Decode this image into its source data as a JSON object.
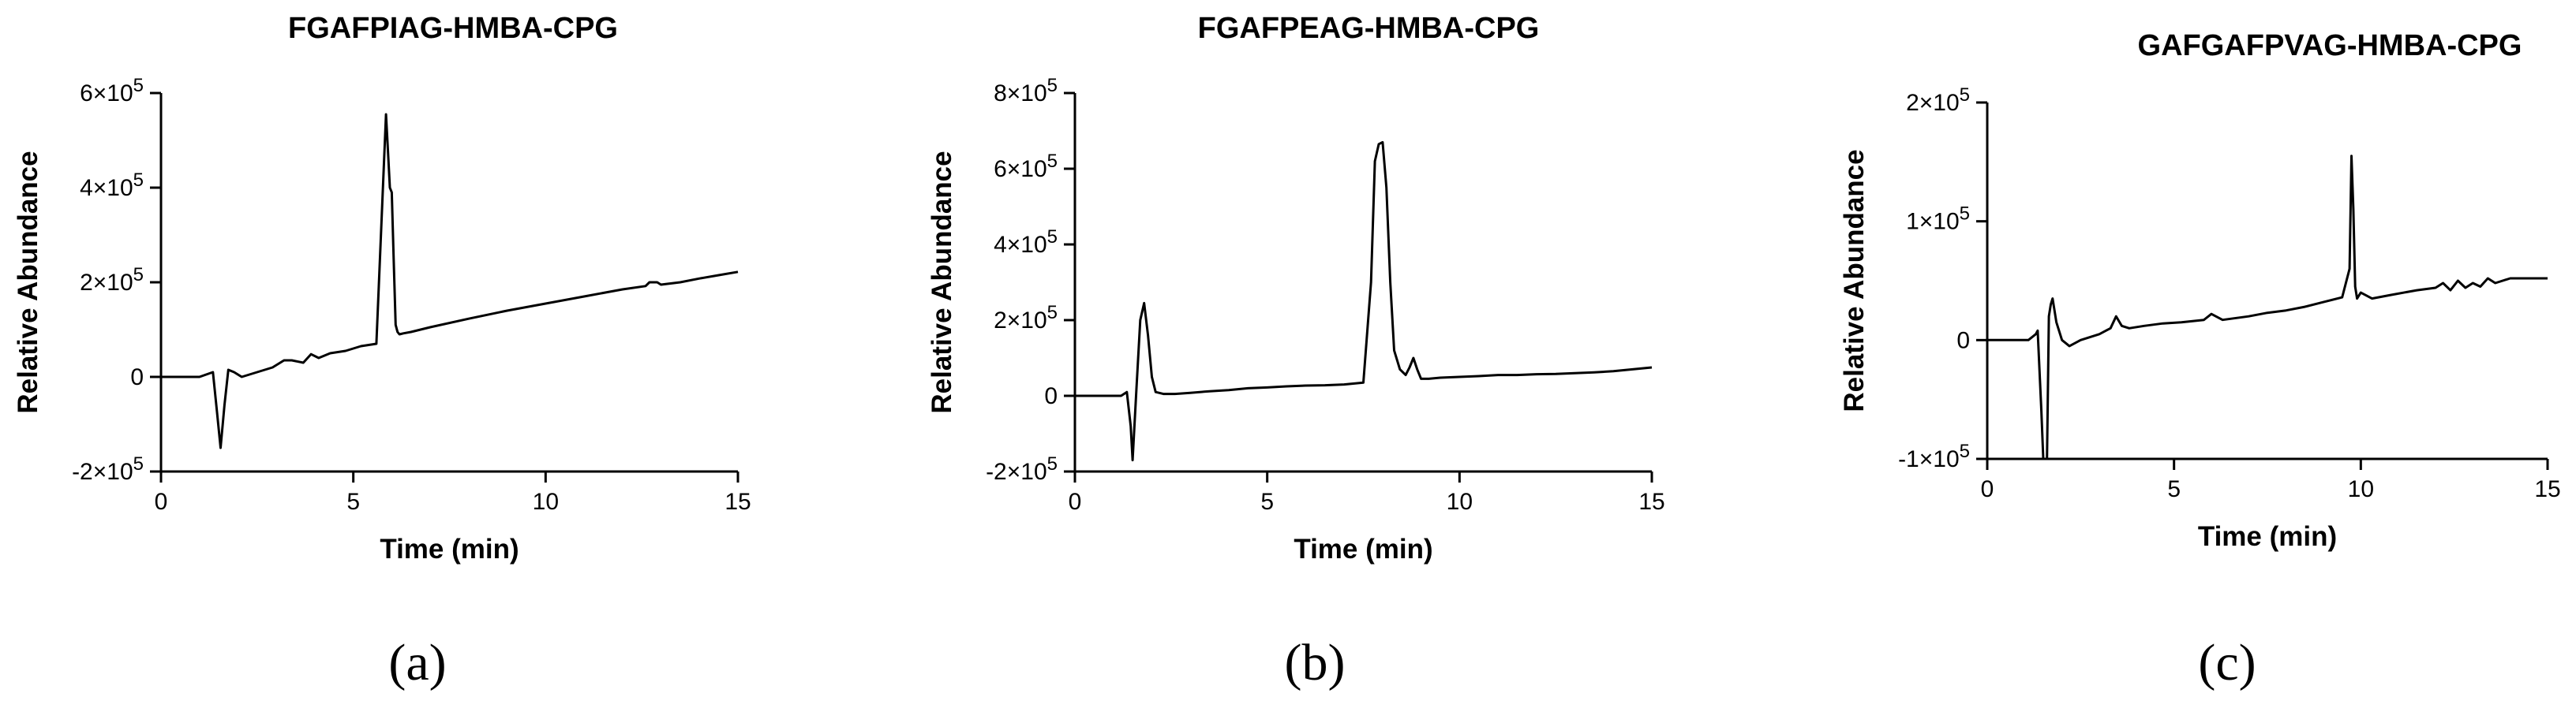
{
  "chart_data": [
    {
      "type": "line",
      "panel_label": "(a)",
      "title": "FGAFPIAG-HMBA-CPG",
      "xlabel": "Time (min)",
      "ylabel": "Relative Abundance",
      "xlim": [
        0,
        15
      ],
      "ylim": [
        -200000,
        600000
      ],
      "x_ticks": [
        0,
        5,
        10,
        15
      ],
      "x_tick_labels": [
        "0",
        "5",
        "10",
        "15"
      ],
      "y_ticks": [
        {
          "value": -200000,
          "mantissa": "-2×10",
          "exp": "5"
        },
        {
          "value": 0,
          "mantissa": "0",
          "exp": ""
        },
        {
          "value": 200000,
          "mantissa": "2×10",
          "exp": "5"
        },
        {
          "value": 400000,
          "mantissa": "4×10",
          "exp": "5"
        },
        {
          "value": 600000,
          "mantissa": "6×10",
          "exp": "5"
        }
      ],
      "series": [
        {
          "x": [
            0,
            1.0,
            1.35,
            1.45,
            1.55,
            1.65,
            1.75,
            1.9,
            2.1,
            2.5,
            2.9,
            3.2,
            3.4,
            3.7,
            3.9,
            4.1,
            4.4,
            4.8,
            5.2,
            5.6,
            5.85,
            5.9,
            5.95,
            6.0,
            6.05,
            6.1,
            6.15,
            6.2,
            6.3,
            6.5,
            7,
            8,
            9,
            10,
            11,
            12,
            12.6,
            12.7,
            12.9,
            13.0,
            13.5,
            14,
            14.5,
            15
          ],
          "y": [
            0,
            0,
            10000,
            -70000,
            -150000,
            -60000,
            15000,
            10000,
            0,
            10000,
            20000,
            35000,
            35000,
            30000,
            48000,
            40000,
            50000,
            55000,
            65000,
            70000,
            555000,
            480000,
            400000,
            390000,
            250000,
            110000,
            95000,
            90000,
            92000,
            95000,
            105000,
            123000,
            140000,
            155000,
            170000,
            185000,
            192000,
            200000,
            200000,
            195000,
            200000,
            208000,
            215000,
            222000
          ]
        }
      ]
    },
    {
      "type": "line",
      "panel_label": "(b)",
      "title": "FGAFPEAG-HMBA-CPG",
      "xlabel": "Time (min)",
      "ylabel": "Relative Abundance",
      "xlim": [
        0,
        15
      ],
      "ylim": [
        -200000,
        800000
      ],
      "x_ticks": [
        0,
        5,
        10,
        15
      ],
      "x_tick_labels": [
        "0",
        "5",
        "10",
        "15"
      ],
      "y_ticks": [
        {
          "value": -200000,
          "mantissa": "-2×10",
          "exp": "5"
        },
        {
          "value": 0,
          "mantissa": "0",
          "exp": ""
        },
        {
          "value": 200000,
          "mantissa": "2×10",
          "exp": "5"
        },
        {
          "value": 400000,
          "mantissa": "4×10",
          "exp": "5"
        },
        {
          "value": 600000,
          "mantissa": "6×10",
          "exp": "5"
        },
        {
          "value": 800000,
          "mantissa": "8×10",
          "exp": "5"
        }
      ],
      "series": [
        {
          "x": [
            0,
            1.2,
            1.35,
            1.45,
            1.5,
            1.6,
            1.7,
            1.8,
            1.9,
            2.0,
            2.1,
            2.3,
            2.6,
            3.0,
            3.5,
            4.0,
            4.5,
            5.0,
            5.5,
            6,
            6.5,
            7,
            7.5,
            7.7,
            7.8,
            7.9,
            8.0,
            8.1,
            8.2,
            8.3,
            8.45,
            8.6,
            8.7,
            8.8,
            8.9,
            9.0,
            9.2,
            9.5,
            10,
            10.5,
            11,
            11.5,
            12,
            12.5,
            13,
            13.5,
            14,
            14.5,
            15
          ],
          "y": [
            0,
            0,
            10000,
            -80000,
            -170000,
            20000,
            200000,
            245000,
            160000,
            50000,
            10000,
            5000,
            5000,
            8000,
            12000,
            15000,
            20000,
            22000,
            25000,
            27000,
            28000,
            30000,
            35000,
            300000,
            620000,
            665000,
            670000,
            550000,
            300000,
            120000,
            70000,
            55000,
            75000,
            100000,
            70000,
            45000,
            45000,
            48000,
            50000,
            52000,
            55000,
            55000,
            57000,
            58000,
            60000,
            62000,
            65000,
            70000,
            75000
          ]
        }
      ]
    },
    {
      "type": "line",
      "panel_label": "(c)",
      "title": "GAFGAFPVAG-HMBA-CPG",
      "xlabel": "Time (min)",
      "ylabel": "Relative  Abundance",
      "xlim": [
        0,
        15
      ],
      "ylim": [
        -100000,
        200000
      ],
      "x_ticks": [
        0,
        5,
        10,
        15
      ],
      "x_tick_labels": [
        "0",
        "5",
        "10",
        "15"
      ],
      "y_ticks": [
        {
          "value": -100000,
          "mantissa": "-1×10",
          "exp": "5"
        },
        {
          "value": 0,
          "mantissa": "0",
          "exp": ""
        },
        {
          "value": 100000,
          "mantissa": "1×10",
          "exp": "5"
        },
        {
          "value": 200000,
          "mantissa": "2×10",
          "exp": "5"
        }
      ],
      "series": [
        {
          "x": [
            0,
            1.1,
            1.3,
            1.35,
            1.45,
            1.5,
            1.55,
            1.6,
            1.65,
            1.7,
            1.75,
            1.85,
            2.0,
            2.2,
            2.5,
            3.0,
            3.3,
            3.45,
            3.6,
            3.8,
            4.2,
            4.7,
            5.2,
            5.8,
            6.0,
            6.3,
            7,
            7.5,
            8,
            8.5,
            9,
            9.5,
            9.7,
            9.75,
            9.8,
            9.85,
            9.9,
            10.0,
            10.3,
            10.8,
            11.5,
            12,
            12.2,
            12.4,
            12.6,
            12.8,
            13.0,
            13.2,
            13.4,
            13.6,
            14,
            14.5,
            15
          ],
          "y": [
            0,
            0,
            5000,
            8000,
            -60000,
            -100000,
            -100000,
            -100000,
            20000,
            30000,
            35000,
            15000,
            0,
            -5000,
            0,
            5000,
            10000,
            20000,
            12000,
            10000,
            12000,
            14000,
            15000,
            17000,
            22000,
            17000,
            20000,
            23000,
            25000,
            28000,
            32000,
            36000,
            60000,
            155000,
            110000,
            45000,
            35000,
            40000,
            35000,
            38000,
            42000,
            44000,
            48000,
            42000,
            50000,
            44000,
            48000,
            45000,
            52000,
            48000,
            52000,
            52000,
            52000
          ]
        }
      ]
    }
  ]
}
